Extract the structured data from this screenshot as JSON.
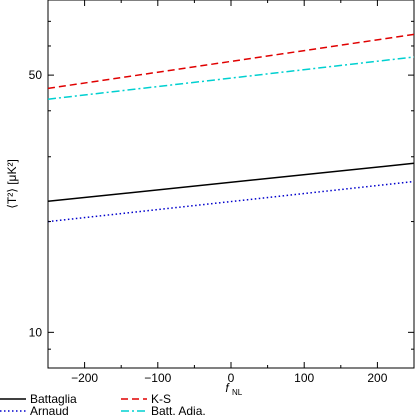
{
  "chart_data": {
    "type": "line",
    "title": "",
    "xlabel_main": "f",
    "xlabel_sub": "NL",
    "ylabel": "⟨T²⟩ [μK²]",
    "xlim": [
      -250,
      250
    ],
    "ylim": [
      8,
      80
    ],
    "yscale": "log",
    "x_ticks": [
      -200,
      -100,
      0,
      100,
      200
    ],
    "x_tick_labels": [
      "−200",
      "−100",
      "0",
      "100",
      "200"
    ],
    "y_ticks": [
      10,
      50
    ],
    "y_tick_labels": [
      "10",
      "50"
    ],
    "x": [
      -250,
      250
    ],
    "series": [
      {
        "name": "Battaglia",
        "values": [
          22.7,
          28.8
        ],
        "color": "#000000",
        "dash": "solid"
      },
      {
        "name": "Arnaud",
        "values": [
          20.0,
          25.7
        ],
        "color": "#0000cc",
        "dash": "dotted"
      },
      {
        "name": "K-S",
        "values": [
          46.0,
          64.5
        ],
        "color": "#e00000",
        "dash": "dashed"
      },
      {
        "name": "Batt. Adia.",
        "values": [
          43.0,
          56.0
        ],
        "color": "#00d0d0",
        "dash": "dashdot"
      }
    ],
    "legend_position": "bottom"
  }
}
